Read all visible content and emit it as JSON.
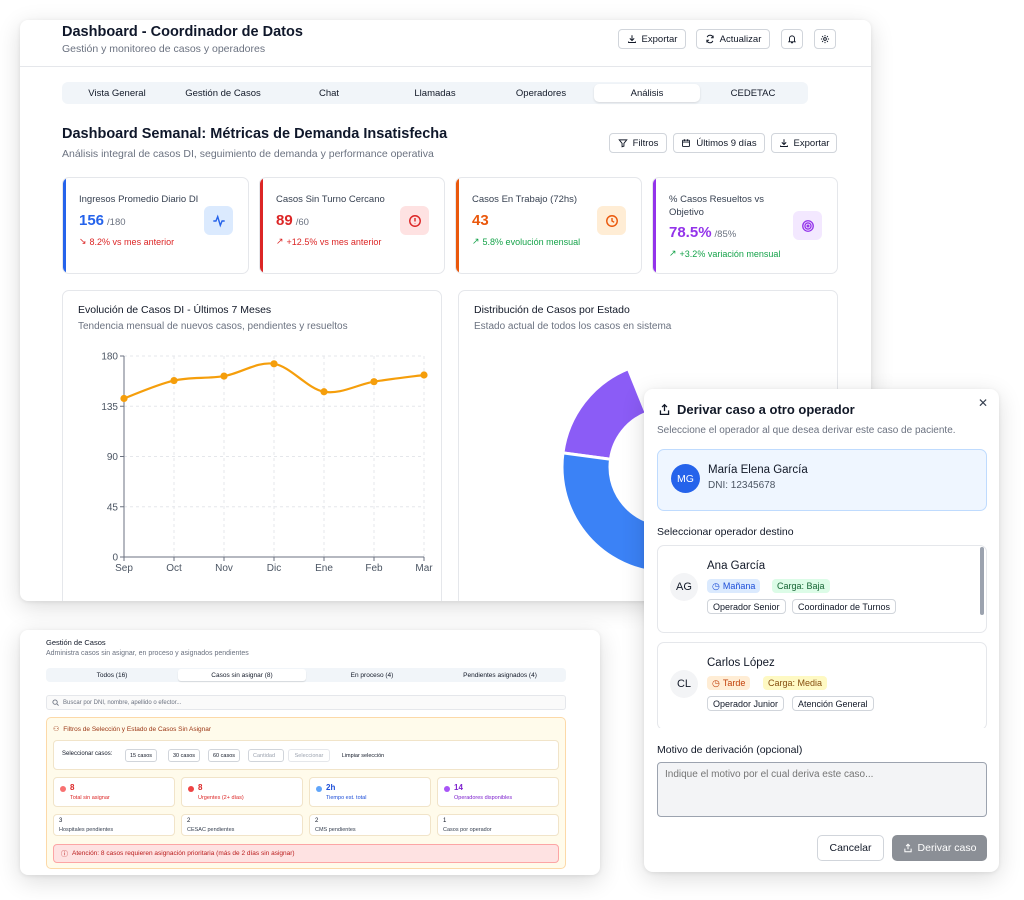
{
  "header": {
    "title": "Dashboard - Coordinador de Datos",
    "subtitle": "Gestión y monitoreo de casos y operadores",
    "export_label": "Exportar",
    "refresh_label": "Actualizar"
  },
  "tabs": [
    "Vista General",
    "Gestión de Casos",
    "Chat",
    "Llamadas",
    "Operadores",
    "Análisis",
    "CEDETAC"
  ],
  "section": {
    "title": "Dashboard Semanal: Métricas de Demanda Insatisfecha",
    "subtitle": "Análisis integral de casos DI, seguimiento de demanda y performance operativa",
    "filters_label": "Filtros",
    "range_label": "Últimos 9 días",
    "export_label": "Exportar"
  },
  "kpis": [
    {
      "label": "Ingresos Promedio Diario DI",
      "value": "156",
      "target": "/180",
      "trend": "8.2% vs mes anterior",
      "color": "#2563eb",
      "trend_color": "#dc2626",
      "icon": "activity-icon"
    },
    {
      "label": "Casos Sin Turno Cercano",
      "value": "89",
      "target": "/60",
      "trend": "+12.5% vs mes anterior",
      "color": "#dc2626",
      "trend_color": "#dc2626",
      "icon": "alert-circle-icon"
    },
    {
      "label": "Casos En Trabajo (72hs)",
      "value": "43",
      "target": "",
      "trend": "5.8% evolución mensual",
      "color": "#ea580c",
      "trend_color": "#16a34a",
      "icon": "clock-icon"
    },
    {
      "label": "% Casos Resueltos vs Objetivo",
      "value": "78.5%",
      "target": "/85%",
      "trend": "+3.2% variación mensual",
      "color": "#9333ea",
      "trend_color": "#16a34a",
      "icon": "target-icon"
    }
  ],
  "line_panel": {
    "title": "Evolución de Casos DI - Últimos 7 Meses",
    "subtitle": "Tendencia mensual de nuevos casos, pendientes y resueltos"
  },
  "donut_panel": {
    "title": "Distribución de Casos por Estado",
    "subtitle": "Estado actual de todos los casos en sistema"
  },
  "chart_data": [
    {
      "type": "line",
      "categories": [
        "Sep",
        "Oct",
        "Nov",
        "Dic",
        "Ene",
        "Feb",
        "Mar"
      ],
      "series": [
        {
          "values": [
            142,
            158,
            162,
            173,
            148,
            157,
            163
          ],
          "color": "#f59e0b"
        }
      ],
      "ylim": [
        0,
        180
      ],
      "yticks": [
        "0",
        "45",
        "90",
        "135",
        "180"
      ],
      "grid": true
    },
    {
      "type": "pie",
      "slices": [
        {
          "value": 30,
          "color": "#8b5cf6"
        },
        {
          "value": 43,
          "color": "#3b82f6"
        },
        {
          "value": 9,
          "color": "#ef4444"
        }
      ],
      "note": "partially hidden by modal"
    }
  ],
  "gestion": {
    "title": "Gestión de Casos",
    "subtitle": "Administra casos sin asignar, en proceso y asignados pendientes",
    "tabs": [
      "Todos (16)",
      "Casos sin asignar (8)",
      "En proceso (4)",
      "Pendientes asignados (4)"
    ],
    "search_placeholder": "Buscar por DNI, nombre, apellido o efector...",
    "filters_title": "Filtros de Selección y Estado de Casos Sin Asignar",
    "select_label": "Seleccionar casos:",
    "chips": [
      "15 casos",
      "30 casos",
      "60 casos"
    ],
    "qty_placeholder": "Cantidad",
    "select_btn": "Seleccionar",
    "clear_btn": "Limpiar selección",
    "stats": [
      {
        "n": "8",
        "t": "Total sin asignar",
        "color": "#dc2626",
        "dot": "#f87171"
      },
      {
        "n": "8",
        "t": "Urgentes (2+ días)",
        "color": "#dc2626",
        "dot": "#ef4444"
      },
      {
        "n": "2h",
        "t": "Tiempo est. total",
        "color": "#1d4ed8",
        "dot": "#60a5fa"
      },
      {
        "n": "14",
        "t": "Operadores disponibles",
        "color": "#7e22ce",
        "dot": "#a855f7"
      }
    ],
    "stats2": [
      {
        "n": "3",
        "t": "Hospitales pendientes"
      },
      {
        "n": "2",
        "t": "CESAC pendientes"
      },
      {
        "n": "2",
        "t": "CMS pendientes"
      },
      {
        "n": "1",
        "t": "Casos por operador"
      }
    ],
    "alert": "Atención: 8 casos requieren asignación prioritaria (más de 2 días sin asignar)"
  },
  "modal": {
    "title": "Derivar caso a otro operador",
    "subtitle": "Seleccione el operador al que desea derivar este caso de paciente.",
    "patient": {
      "initials": "MG",
      "name": "María Elena García",
      "dni": "DNI: 12345678"
    },
    "select_label": "Seleccionar operador destino",
    "operators": [
      {
        "initials": "AG",
        "name": "Ana García",
        "shift": "Mañana",
        "load": "Carga: Baja",
        "roles": [
          "Operador Senior",
          "Coordinador de Turnos"
        ]
      },
      {
        "initials": "CL",
        "name": "Carlos López",
        "shift": "Tarde",
        "load": "Carga: Media",
        "roles": [
          "Operador Junior",
          "Atención General"
        ]
      }
    ],
    "reason_label": "Motivo de derivación (opcional)",
    "reason_placeholder": "Indique el motivo por el cual deriva este caso...",
    "cancel_label": "Cancelar",
    "submit_label": "Derivar caso"
  }
}
